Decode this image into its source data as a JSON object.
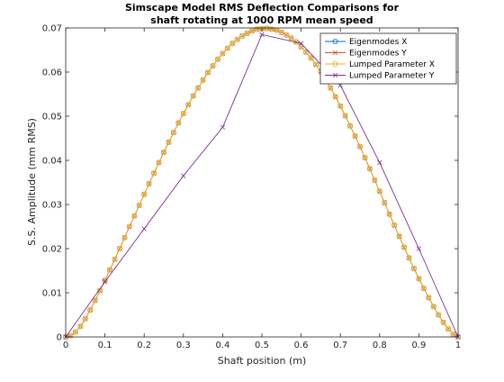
{
  "chart_data": {
    "type": "line",
    "title": "Simscape Model RMS Deflection Comparisons for",
    "subtitle": "shaft rotating at 1000 RPM mean speed",
    "xlabel": "Shaft position (m)",
    "ylabel": "S.S. Amplitude (mm RMS)",
    "xlim": [
      0,
      1
    ],
    "ylim": [
      0,
      0.07
    ],
    "xticks": [
      0,
      0.1,
      0.2,
      0.3,
      0.4,
      0.5,
      0.6,
      0.7,
      0.8,
      0.9,
      1
    ],
    "xtick_labels": [
      "0",
      "0.1",
      "0.2",
      "0.3",
      "0.4",
      "0.5",
      "0.6",
      "0.7",
      "0.8",
      "0.9",
      "1"
    ],
    "yticks": [
      0,
      0.01,
      0.02,
      0.03,
      0.04,
      0.05,
      0.06,
      0.07
    ],
    "ytick_labels": [
      "0",
      "0.01",
      "0.02",
      "0.03",
      "0.04",
      "0.05",
      "0.06",
      "0.07"
    ],
    "grid": false,
    "legend_position": "top-right",
    "series": [
      {
        "name": "Eigenmodes X",
        "color": "#0072BD",
        "marker": "o",
        "x": [
          0,
          0.0125,
          0.025,
          0.0375,
          0.05,
          0.0625,
          0.075,
          0.0875,
          0.1,
          0.1125,
          0.125,
          0.1375,
          0.15,
          0.1625,
          0.175,
          0.1875,
          0.2,
          0.2125,
          0.225,
          0.2375,
          0.25,
          0.2625,
          0.275,
          0.2875,
          0.3,
          0.3125,
          0.325,
          0.3375,
          0.35,
          0.3625,
          0.375,
          0.3875,
          0.4,
          0.4125,
          0.425,
          0.4375,
          0.45,
          0.4625,
          0.475,
          0.4875,
          0.5,
          0.5125,
          0.525,
          0.5375,
          0.55,
          0.5625,
          0.575,
          0.5875,
          0.6,
          0.6125,
          0.625,
          0.6375,
          0.65,
          0.6625,
          0.675,
          0.6875,
          0.7,
          0.7125,
          0.725,
          0.7375,
          0.75,
          0.7625,
          0.775,
          0.7875,
          0.8,
          0.8125,
          0.825,
          0.8375,
          0.85,
          0.8625,
          0.875,
          0.8875,
          0.9,
          0.9125,
          0.925,
          0.9375,
          0.95,
          0.9625,
          0.975,
          0.9875,
          1
        ],
        "y": [
          0,
          0.0003,
          0.0011,
          0.0024,
          0.0041,
          0.0061,
          0.0083,
          0.0105,
          0.0128,
          0.0152,
          0.0176,
          0.02,
          0.0225,
          0.025,
          0.0274,
          0.0298,
          0.0323,
          0.0347,
          0.0371,
          0.0395,
          0.0418,
          0.0441,
          0.0463,
          0.0485,
          0.0506,
          0.0526,
          0.0546,
          0.0564,
          0.0582,
          0.0599,
          0.0614,
          0.0629,
          0.0642,
          0.0654,
          0.0665,
          0.0674,
          0.0682,
          0.0688,
          0.0693,
          0.0697,
          0.0698,
          0.0699,
          0.0697,
          0.0695,
          0.069,
          0.0684,
          0.0677,
          0.0668,
          0.0657,
          0.0645,
          0.0632,
          0.0617,
          0.0601,
          0.0583,
          0.0564,
          0.0544,
          0.0523,
          0.0501,
          0.0478,
          0.0455,
          0.0431,
          0.0406,
          0.0381,
          0.0355,
          0.033,
          0.0304,
          0.0278,
          0.0253,
          0.0228,
          0.0203,
          0.0179,
          0.0155,
          0.0132,
          0.011,
          0.0089,
          0.0069,
          0.005,
          0.0033,
          0.0018,
          0.0006,
          0
        ]
      },
      {
        "name": "Eigenmodes Y",
        "color": "#D95319",
        "marker": "x",
        "x": [
          0,
          0.0125,
          0.025,
          0.0375,
          0.05,
          0.0625,
          0.075,
          0.0875,
          0.1,
          0.1125,
          0.125,
          0.1375,
          0.15,
          0.1625,
          0.175,
          0.1875,
          0.2,
          0.2125,
          0.225,
          0.2375,
          0.25,
          0.2625,
          0.275,
          0.2875,
          0.3,
          0.3125,
          0.325,
          0.3375,
          0.35,
          0.3625,
          0.375,
          0.3875,
          0.4,
          0.4125,
          0.425,
          0.4375,
          0.45,
          0.4625,
          0.475,
          0.4875,
          0.5,
          0.5125,
          0.525,
          0.5375,
          0.55,
          0.5625,
          0.575,
          0.5875,
          0.6,
          0.6125,
          0.625,
          0.6375,
          0.65,
          0.6625,
          0.675,
          0.6875,
          0.7,
          0.7125,
          0.725,
          0.7375,
          0.75,
          0.7625,
          0.775,
          0.7875,
          0.8,
          0.8125,
          0.825,
          0.8375,
          0.85,
          0.8625,
          0.875,
          0.8875,
          0.9,
          0.9125,
          0.925,
          0.9375,
          0.95,
          0.9625,
          0.975,
          0.9875,
          1
        ],
        "y": [
          0,
          0.0003,
          0.0011,
          0.0024,
          0.0041,
          0.0061,
          0.0083,
          0.0105,
          0.0128,
          0.0152,
          0.0176,
          0.02,
          0.0225,
          0.025,
          0.0274,
          0.0298,
          0.0323,
          0.0347,
          0.0371,
          0.0395,
          0.0418,
          0.0441,
          0.0463,
          0.0485,
          0.0506,
          0.0526,
          0.0546,
          0.0564,
          0.0582,
          0.0599,
          0.0614,
          0.0629,
          0.0642,
          0.0654,
          0.0665,
          0.0674,
          0.0682,
          0.0688,
          0.0693,
          0.0697,
          0.0698,
          0.0699,
          0.0697,
          0.0695,
          0.069,
          0.0684,
          0.0677,
          0.0668,
          0.0657,
          0.0645,
          0.0632,
          0.0617,
          0.0601,
          0.0583,
          0.0564,
          0.0544,
          0.0523,
          0.0501,
          0.0478,
          0.0455,
          0.0431,
          0.0406,
          0.0381,
          0.0355,
          0.033,
          0.0304,
          0.0278,
          0.0253,
          0.0228,
          0.0203,
          0.0179,
          0.0155,
          0.0132,
          0.011,
          0.0089,
          0.0069,
          0.005,
          0.0033,
          0.0018,
          0.0006,
          0
        ]
      },
      {
        "name": "Lumped Parameter X",
        "color": "#EDB120",
        "marker": "o",
        "x": [
          0,
          0.0125,
          0.025,
          0.0375,
          0.05,
          0.0625,
          0.075,
          0.0875,
          0.1,
          0.1125,
          0.125,
          0.1375,
          0.15,
          0.1625,
          0.175,
          0.1875,
          0.2,
          0.2125,
          0.225,
          0.2375,
          0.25,
          0.2625,
          0.275,
          0.2875,
          0.3,
          0.3125,
          0.325,
          0.3375,
          0.35,
          0.3625,
          0.375,
          0.3875,
          0.4,
          0.4125,
          0.425,
          0.4375,
          0.45,
          0.4625,
          0.475,
          0.4875,
          0.5,
          0.5125,
          0.525,
          0.5375,
          0.55,
          0.5625,
          0.575,
          0.5875,
          0.6,
          0.6125,
          0.625,
          0.6375,
          0.65,
          0.6625,
          0.675,
          0.6875,
          0.7,
          0.7125,
          0.725,
          0.7375,
          0.75,
          0.7625,
          0.775,
          0.7875,
          0.8,
          0.8125,
          0.825,
          0.8375,
          0.85,
          0.8625,
          0.875,
          0.8875,
          0.9,
          0.9125,
          0.925,
          0.9375,
          0.95,
          0.9625,
          0.975,
          0.9875,
          1
        ],
        "y": [
          0,
          0.0003,
          0.0011,
          0.0024,
          0.0041,
          0.0061,
          0.0083,
          0.0105,
          0.0128,
          0.0152,
          0.0176,
          0.02,
          0.0225,
          0.025,
          0.0274,
          0.0298,
          0.0323,
          0.0347,
          0.0371,
          0.0395,
          0.0418,
          0.0441,
          0.0463,
          0.0485,
          0.0506,
          0.0526,
          0.0546,
          0.0564,
          0.0582,
          0.0599,
          0.0614,
          0.0629,
          0.0642,
          0.0654,
          0.0665,
          0.0674,
          0.0682,
          0.0688,
          0.0693,
          0.0697,
          0.0698,
          0.0699,
          0.0697,
          0.0695,
          0.069,
          0.0684,
          0.0677,
          0.0668,
          0.0657,
          0.0645,
          0.0632,
          0.0617,
          0.0601,
          0.0583,
          0.0564,
          0.0544,
          0.0523,
          0.0501,
          0.0478,
          0.0455,
          0.0431,
          0.0406,
          0.0381,
          0.0355,
          0.033,
          0.0304,
          0.0278,
          0.0253,
          0.0228,
          0.0203,
          0.0179,
          0.0155,
          0.0132,
          0.011,
          0.0089,
          0.0069,
          0.005,
          0.0033,
          0.0018,
          0.0006,
          0
        ]
      },
      {
        "name": "Lumped Parameter Y",
        "color": "#7E2F8E",
        "marker": "x",
        "x": [
          0,
          0.1,
          0.2,
          0.3,
          0.4,
          0.5,
          0.6,
          0.7,
          0.8,
          0.9,
          1
        ],
        "y": [
          0,
          0.0125,
          0.0245,
          0.0365,
          0.0475,
          0.0685,
          0.0665,
          0.057,
          0.0395,
          0.02,
          0
        ]
      }
    ]
  }
}
